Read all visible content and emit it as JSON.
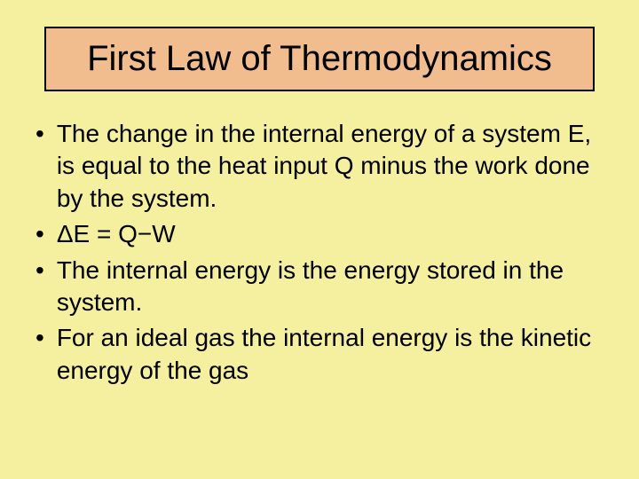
{
  "slide": {
    "title": "First Law of Thermodynamics",
    "bullets": [
      "The change in the internal energy of a system E, is equal to the heat input Q minus the work done by the system.",
      "ΔE = Q−W",
      "The internal energy is the energy stored in the system.",
      "For an ideal gas the internal energy is the kinetic energy of the gas"
    ],
    "background_color": "#f5f0a0",
    "title_background_color": "#f2bd8e",
    "title_border_color": "#000000",
    "text_color": "#000000",
    "title_fontsize": 40,
    "bullet_fontsize": 28,
    "bullet_marker": "•"
  }
}
